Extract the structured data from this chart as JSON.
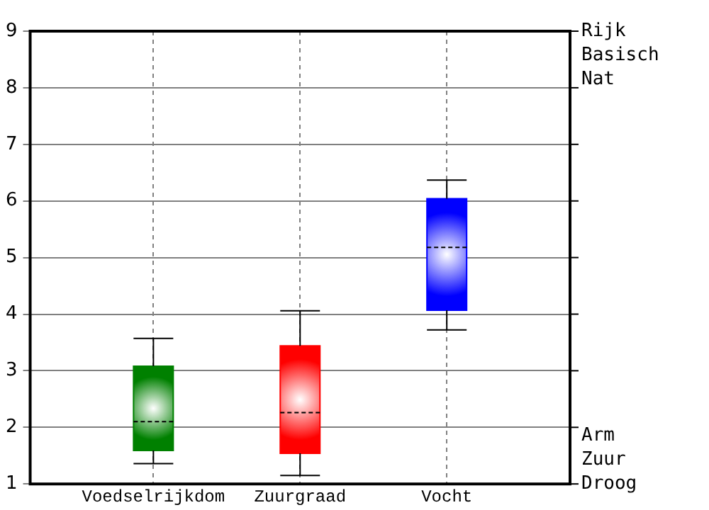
{
  "chart_data": {
    "type": "box",
    "categories": [
      "Voedselrijkdom",
      "Zuurgraad",
      "Vocht"
    ],
    "colors": [
      "#008000",
      "#ff0000",
      "#0000ff"
    ],
    "boxes": [
      {
        "low": 1.36,
        "q1": 1.59,
        "median": 2.1,
        "q3": 3.08,
        "high": 3.57
      },
      {
        "low": 1.15,
        "q1": 1.54,
        "median": 2.26,
        "q3": 3.44,
        "high": 4.06
      },
      {
        "low": 3.72,
        "q1": 4.07,
        "median": 5.18,
        "q3": 6.04,
        "high": 6.37
      }
    ],
    "ylim": [
      1,
      9
    ],
    "yticks": [
      1,
      2,
      3,
      4,
      5,
      6,
      7,
      8,
      9
    ],
    "grid": true,
    "legend": false,
    "annotations": [
      "Rijk",
      "Basisch",
      "Nat",
      "Arm",
      "Zuur",
      "Droog"
    ]
  }
}
